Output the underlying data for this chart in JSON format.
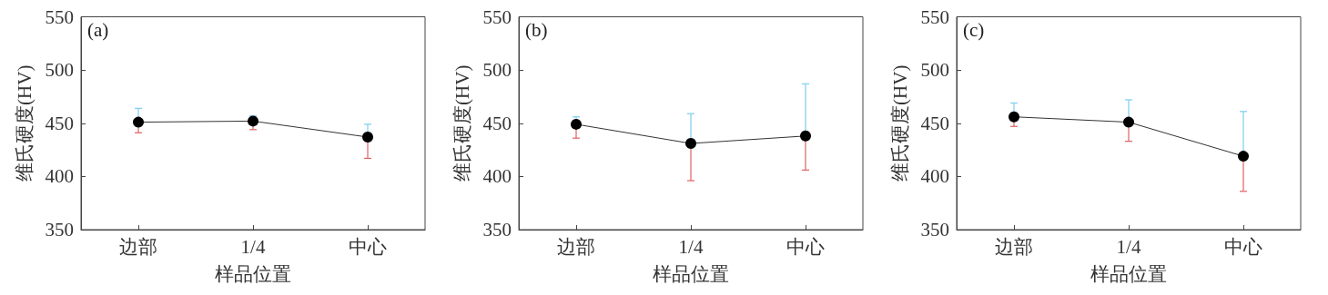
{
  "chart_data": [
    {
      "type": "line",
      "annotations": [
        "(a)"
      ],
      "xlabel": "样品位置",
      "ylabel": "维氏硬度(HV)",
      "categories": [
        "边部",
        "1/4",
        "中心"
      ],
      "ylim": [
        350,
        550
      ],
      "yticks": [
        350,
        400,
        450,
        500,
        550
      ],
      "marker": "circle",
      "grid": false,
      "series": [
        {
          "color": "#000000",
          "values": [
            451,
            452,
            437
          ],
          "errors": [
            [
              441,
              464
            ],
            [
              444,
              457
            ],
            [
              417,
              449
            ]
          ]
        }
      ]
    },
    {
      "type": "line",
      "annotations": [
        "(b)"
      ],
      "xlabel": "样品位置",
      "ylabel": "维氏硬度(HV)",
      "categories": [
        "边部",
        "1/4",
        "中心"
      ],
      "ylim": [
        350,
        550
      ],
      "yticks": [
        350,
        400,
        450,
        500,
        550
      ],
      "marker": "circle",
      "grid": false,
      "series": [
        {
          "color": "#000000",
          "values": [
            449,
            431,
            438
          ],
          "errors": [
            [
              436,
              456
            ],
            [
              396,
              459
            ],
            [
              406,
              487
            ]
          ]
        }
      ]
    },
    {
      "type": "line",
      "annotations": [
        "(c)"
      ],
      "xlabel": "样品位置",
      "ylabel": "维氏硬度(HV)",
      "categories": [
        "边部",
        "1/4",
        "中心"
      ],
      "ylim": [
        350,
        550
      ],
      "yticks": [
        350,
        400,
        450,
        500,
        550
      ],
      "marker": "circle",
      "grid": false,
      "series": [
        {
          "color": "#000000",
          "values": [
            456,
            451,
            419
          ],
          "errors": [
            [
              447,
              469
            ],
            [
              433,
              472
            ],
            [
              386,
              461
            ]
          ]
        }
      ]
    }
  ]
}
